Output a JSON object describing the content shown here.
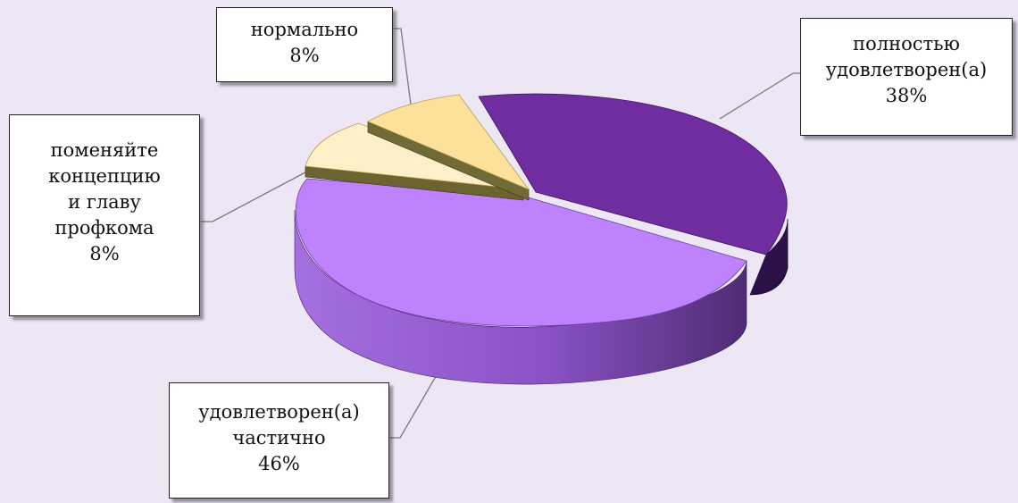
{
  "chart_data": {
    "type": "pie",
    "style": "3d-exploded",
    "series": [
      {
        "label": "полностью\nудовлетворен(а)",
        "percent_label": "38%",
        "value": 38,
        "color": "#7030a0"
      },
      {
        "label": "удовлетворен(а)\nчастично",
        "percent_label": "46%",
        "value": 46,
        "color": "#bf80ff"
      },
      {
        "label": "поменяйте\nконцепцию\nи главу\nпрофкома",
        "percent_label": "8%",
        "value": 8,
        "color": "#fdf0cc"
      },
      {
        "label": "нормально",
        "percent_label": "8%",
        "value": 8,
        "color": "#fbe29a"
      }
    ]
  }
}
